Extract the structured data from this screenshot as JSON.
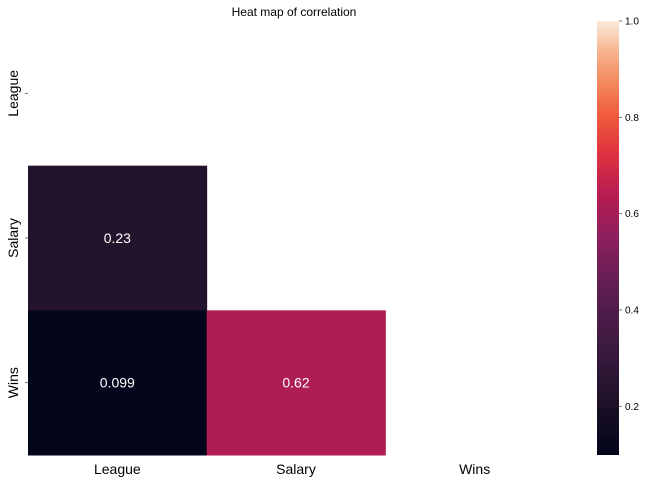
{
  "chart_data": {
    "type": "heatmap",
    "title": "Heat map of correlation",
    "rows": [
      "League",
      "Salary",
      "Wins"
    ],
    "columns": [
      "League",
      "Salary",
      "Wins"
    ],
    "mask": "upper-triangle-including-diagonal",
    "cells": [
      {
        "row": "Salary",
        "column": "League",
        "value": 0.23,
        "label": "0.23"
      },
      {
        "row": "Wins",
        "column": "League",
        "value": 0.099,
        "label": "0.099"
      },
      {
        "row": "Wins",
        "column": "Salary",
        "value": 0.62,
        "label": "0.62"
      }
    ],
    "colorbar": {
      "min": 0.099,
      "max": 1.0,
      "ticks": [
        {
          "value": 0.2,
          "label": "0.2"
        },
        {
          "value": 0.4,
          "label": "0.4"
        },
        {
          "value": 0.6,
          "label": "0.6"
        },
        {
          "value": 0.8,
          "label": "0.8"
        },
        {
          "value": 1.0,
          "label": "1.0"
        }
      ],
      "colormap": "rocket"
    },
    "grid": false
  }
}
